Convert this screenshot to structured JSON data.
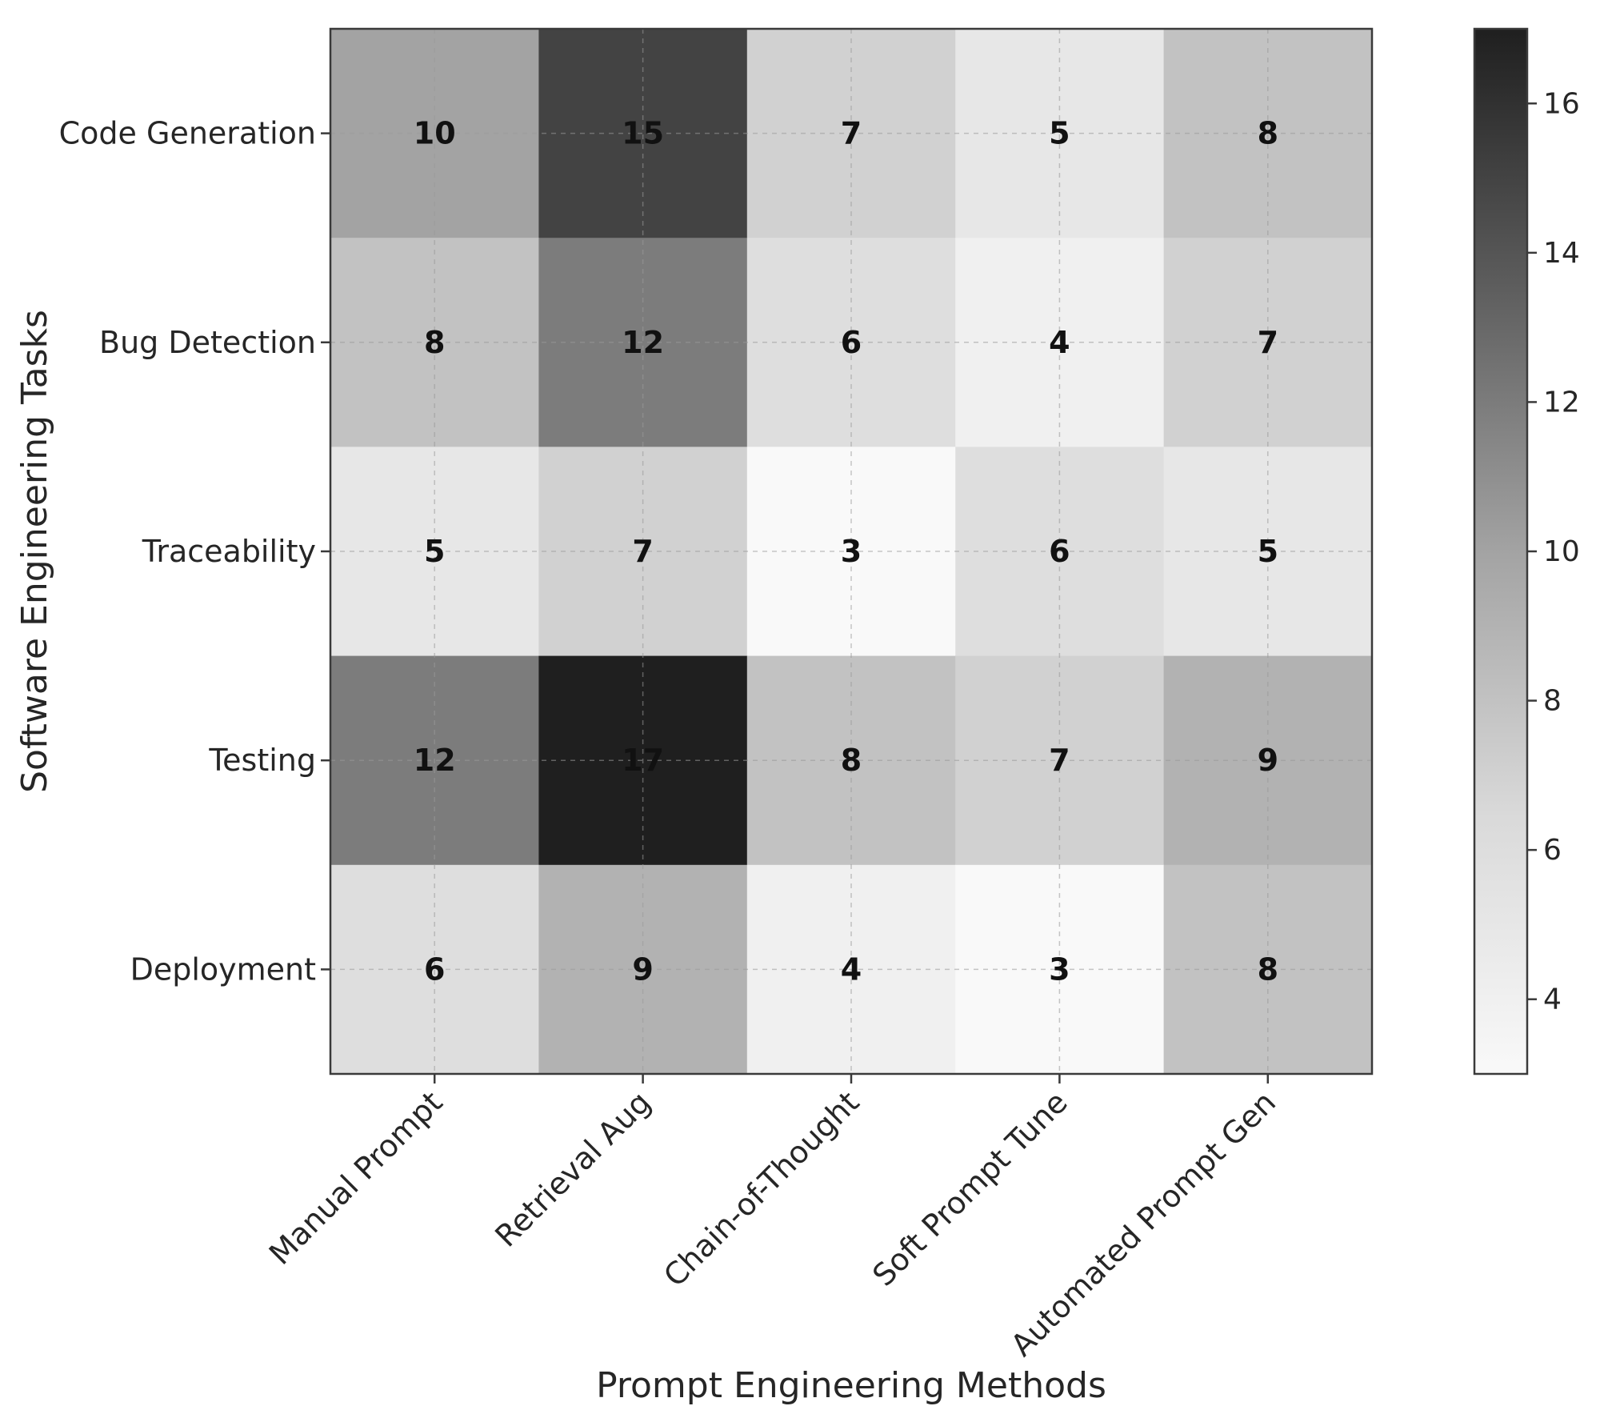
{
  "chart_data": {
    "type": "heatmap",
    "title": "",
    "xlabel": "Prompt Engineering Methods",
    "ylabel": "Software Engineering Tasks",
    "x_categories": [
      "Manual Prompt",
      "Retrieval Aug",
      "Chain-of-Thought",
      "Soft Prompt Tune",
      "Automated Prompt Gen"
    ],
    "y_categories": [
      "Code Generation",
      "Bug Detection",
      "Traceability",
      "Testing",
      "Deployment"
    ],
    "values": [
      [
        10,
        15,
        7,
        5,
        8
      ],
      [
        8,
        12,
        6,
        4,
        7
      ],
      [
        5,
        7,
        3,
        6,
        5
      ],
      [
        12,
        17,
        8,
        7,
        9
      ],
      [
        6,
        9,
        4,
        3,
        8
      ]
    ],
    "colormap": "greys",
    "vmin": 3,
    "vmax": 17,
    "colorbar_ticks": [
      4,
      6,
      8,
      10,
      12,
      14,
      16
    ],
    "grid": true
  }
}
